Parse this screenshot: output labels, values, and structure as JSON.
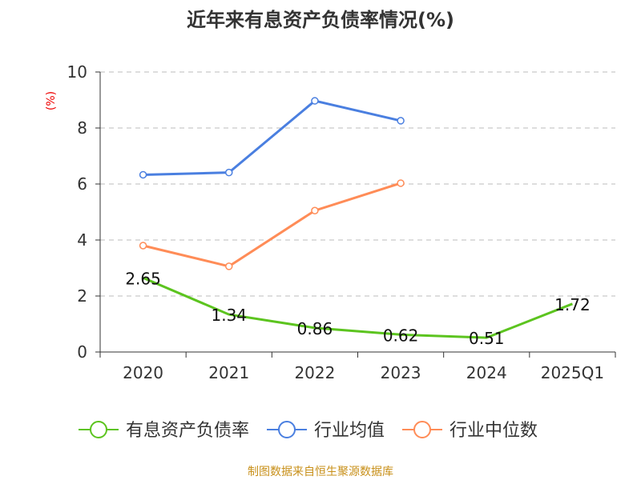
{
  "chart_data": {
    "type": "line",
    "title": "近年来有息资产负债率情况(%)",
    "ylabel": "(%)",
    "xlabel": "",
    "ylim": [
      0,
      10
    ],
    "yticks": [
      0,
      2,
      4,
      6,
      8,
      10
    ],
    "grid": true,
    "categories": [
      "2020",
      "2021",
      "2022",
      "2023",
      "2024",
      "2025Q1"
    ],
    "series": [
      {
        "name": "有息资产负债率",
        "color": "#5cc41f",
        "values": [
          2.65,
          1.34,
          0.86,
          0.62,
          0.51,
          1.72
        ],
        "labels": [
          "2.65",
          "1.34",
          "0.86",
          "0.62",
          "0.51",
          "1.72"
        ]
      },
      {
        "name": "行业均值",
        "color": "#4a7fe0",
        "values": [
          6.33,
          6.41,
          8.97,
          8.26,
          null,
          null
        ]
      },
      {
        "name": "行业中位数",
        "color": "#ff8c57",
        "values": [
          3.8,
          3.06,
          5.05,
          6.03,
          null,
          null
        ]
      }
    ],
    "legend_position": "bottom"
  },
  "source": "制图数据来自恒生聚源数据库"
}
